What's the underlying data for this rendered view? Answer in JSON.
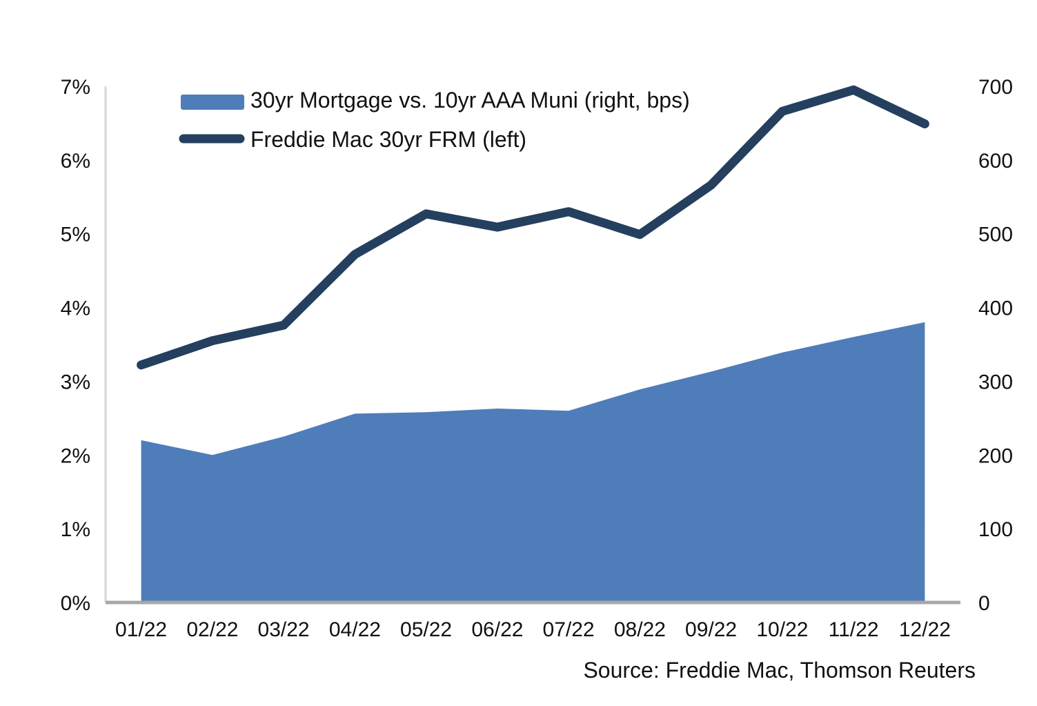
{
  "chart_data": {
    "type": "combo",
    "categories": [
      "01/22",
      "02/22",
      "03/22",
      "04/22",
      "05/22",
      "06/22",
      "07/22",
      "08/22",
      "09/22",
      "10/22",
      "11/22",
      "12/22"
    ],
    "series": [
      {
        "name": "30yr Mortgage vs. 10yr AAA Muni (right, bps)",
        "type": "area",
        "axis": "right",
        "color": "#4F7DBA",
        "values": [
          220,
          200,
          225,
          256,
          258,
          263,
          260,
          289,
          313,
          339,
          360,
          380
        ]
      },
      {
        "name": "Freddie Mac 30yr FRM (left)",
        "type": "line",
        "axis": "left",
        "color": "#253F5E",
        "values": [
          3.22,
          3.55,
          3.76,
          4.72,
          5.27,
          5.09,
          5.3,
          4.99,
          5.66,
          6.66,
          6.95,
          6.49
        ]
      }
    ],
    "left_axis": {
      "min": 0,
      "max": 7,
      "ticks": [
        "0%",
        "1%",
        "2%",
        "3%",
        "4%",
        "5%",
        "6%",
        "7%"
      ]
    },
    "right_axis": {
      "min": 0,
      "max": 700,
      "ticks": [
        "0",
        "100",
        "200",
        "300",
        "400",
        "500",
        "600",
        "700"
      ]
    },
    "grid": false,
    "legend_position": "top-left",
    "source": "Source: Freddie Mac, Thomson Reuters"
  },
  "colors": {
    "area_fill": "#4F7DBA",
    "line_stroke": "#253F5E",
    "bottom_axis": "#A8A8A8",
    "left_axis_line": "#D6D6D6",
    "text": "#111111"
  }
}
